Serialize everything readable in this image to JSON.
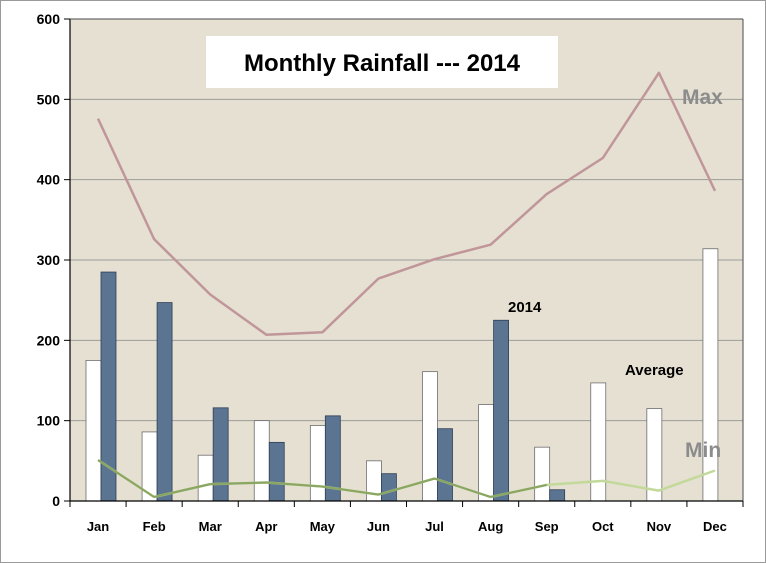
{
  "chart_data": {
    "type": "bar",
    "title": "Monthly Rainfall --- 2014",
    "xlabel": "",
    "ylabel": "",
    "ylim": [
      0,
      600
    ],
    "yticks": [
      "0",
      "100",
      "200",
      "300",
      "400",
      "500",
      "600"
    ],
    "categories": [
      "Jan",
      "Feb",
      "Mar",
      "Apr",
      "May",
      "Jun",
      "Jul",
      "Aug",
      "Sep",
      "Oct",
      "Nov",
      "Dec"
    ],
    "grid": true,
    "series": [
      {
        "name": "Average",
        "type": "bar",
        "color": "#ffffff",
        "values": [
          175,
          86,
          57,
          100,
          94,
          50,
          161,
          120,
          67,
          147,
          115,
          314
        ]
      },
      {
        "name": "2014",
        "type": "bar",
        "color": "#5a7491",
        "values": [
          285,
          247,
          116,
          73,
          106,
          34,
          90,
          225,
          14,
          null,
          null,
          null
        ]
      },
      {
        "name": "Max",
        "type": "line",
        "color": "#c0969a",
        "values": [
          476,
          326,
          257,
          207,
          210,
          277,
          301,
          319,
          382,
          427,
          533,
          386
        ]
      },
      {
        "name": "Min",
        "type": "line",
        "color": "#c2d99a",
        "values": [
          51,
          5,
          21,
          23,
          18,
          8,
          28,
          5,
          20,
          25,
          13,
          38
        ]
      }
    ],
    "labels": {
      "max": "Max",
      "min": "Min",
      "y2014": "2014",
      "average": "Average"
    },
    "colors": {
      "plot_bg": "#e5e0d1",
      "grid": "#9c9c9c",
      "average_fill": "#ffffff",
      "y2014_fill": "#5a7491",
      "max_line": "#c0969a",
      "min_line_light": "#c2d99a",
      "min_line_dark": "#5c7b35"
    }
  }
}
